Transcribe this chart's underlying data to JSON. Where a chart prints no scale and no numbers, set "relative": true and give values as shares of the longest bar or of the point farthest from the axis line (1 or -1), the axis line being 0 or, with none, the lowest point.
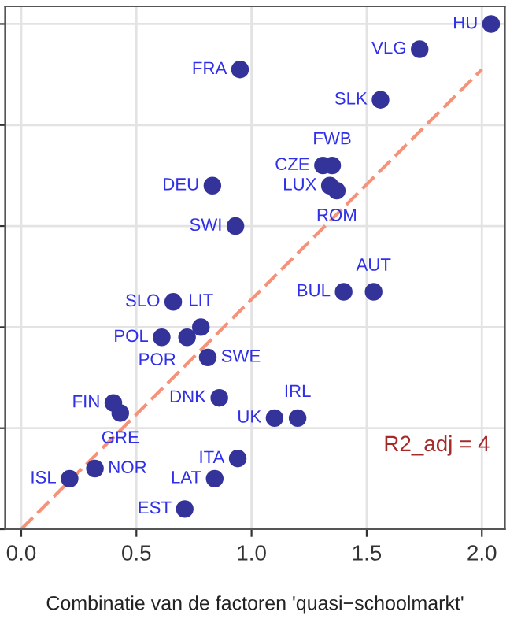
{
  "chart_data": {
    "type": "scatter",
    "xlabel": "Combinatie van de factoren 'quasi−schoolmarkt'",
    "relative": true,
    "xlim": [
      -0.07,
      2.1
    ],
    "xticks": [
      {
        "value": 0,
        "label": "0.0"
      },
      {
        "value": 0.5,
        "label": "0.5"
      },
      {
        "value": 1,
        "label": "1.0"
      },
      {
        "value": 1.5,
        "label": "1.5"
      },
      {
        "value": 2,
        "label": "2.0"
      }
    ],
    "grid": true,
    "tick_labels": "x",
    "series": [
      {
        "type": "scatter",
        "color": "#33339a",
        "marker": "circle",
        "x": [
          1.73,
          0.95,
          1.56,
          1.31,
          1.35,
          1.34,
          1.37,
          0.83,
          0.93,
          1.53,
          1.4,
          0.66,
          0.78,
          0.61,
          0.72,
          0.81,
          0.86,
          0.4,
          0.43,
          1.1,
          1.2,
          0.94,
          0.32,
          0.84,
          0.21,
          0.71,
          2.04
        ],
        "values": [
          0.95,
          0.91,
          0.85,
          0.72,
          0.72,
          0.68,
          0.67,
          0.68,
          0.6,
          0.47,
          0.47,
          0.45,
          0.4,
          0.38,
          0.38,
          0.34,
          0.26,
          0.25,
          0.23,
          0.22,
          0.22,
          0.14,
          0.12,
          0.1,
          0.1,
          0.04,
          1.0
        ]
      },
      {
        "type": "line",
        "color": "#f4937a",
        "line_style": "dashed",
        "x": [
          0,
          2.0
        ],
        "values": [
          0,
          0.91
        ]
      }
    ],
    "annotations": [
      {
        "text": "VLG",
        "x": 1.73,
        "y": 0.95
      },
      {
        "text": "FRA",
        "x": 0.95,
        "y": 0.91
      },
      {
        "text": "SLK",
        "x": 1.56,
        "y": 0.85
      },
      {
        "text": "CZE",
        "x": 1.31,
        "y": 0.72
      },
      {
        "text": "FWB",
        "x": 1.35,
        "y": 0.72
      },
      {
        "text": "LUX",
        "x": 1.34,
        "y": 0.68
      },
      {
        "text": "ROM",
        "x": 1.37,
        "y": 0.67
      },
      {
        "text": "DEU",
        "x": 0.83,
        "y": 0.68
      },
      {
        "text": "SWI",
        "x": 0.93,
        "y": 0.6
      },
      {
        "text": "AUT",
        "x": 1.53,
        "y": 0.47
      },
      {
        "text": "BUL",
        "x": 1.4,
        "y": 0.47
      },
      {
        "text": "SLO",
        "x": 0.66,
        "y": 0.45
      },
      {
        "text": "LIT",
        "x": 0.78,
        "y": 0.4
      },
      {
        "text": "POL",
        "x": 0.61,
        "y": 0.38
      },
      {
        "text": "POR",
        "x": 0.72,
        "y": 0.38
      },
      {
        "text": "SWE",
        "x": 0.81,
        "y": 0.34
      },
      {
        "text": "DNK",
        "x": 0.86,
        "y": 0.26
      },
      {
        "text": "FIN",
        "x": 0.4,
        "y": 0.25
      },
      {
        "text": "GRE",
        "x": 0.43,
        "y": 0.23
      },
      {
        "text": "UK",
        "x": 1.1,
        "y": 0.22
      },
      {
        "text": "IRL",
        "x": 1.2,
        "y": 0.22
      },
      {
        "text": "ITA",
        "x": 0.94,
        "y": 0.14
      },
      {
        "text": "NOR",
        "x": 0.32,
        "y": 0.12
      },
      {
        "text": "LAT",
        "x": 0.84,
        "y": 0.1
      },
      {
        "text": "ISL",
        "x": 0.21,
        "y": 0.1
      },
      {
        "text": "EST",
        "x": 0.71,
        "y": 0.04
      },
      {
        "text": "HU",
        "x": 2.04,
        "y": 1.0
      },
      "R2_adj = 4"
    ]
  }
}
